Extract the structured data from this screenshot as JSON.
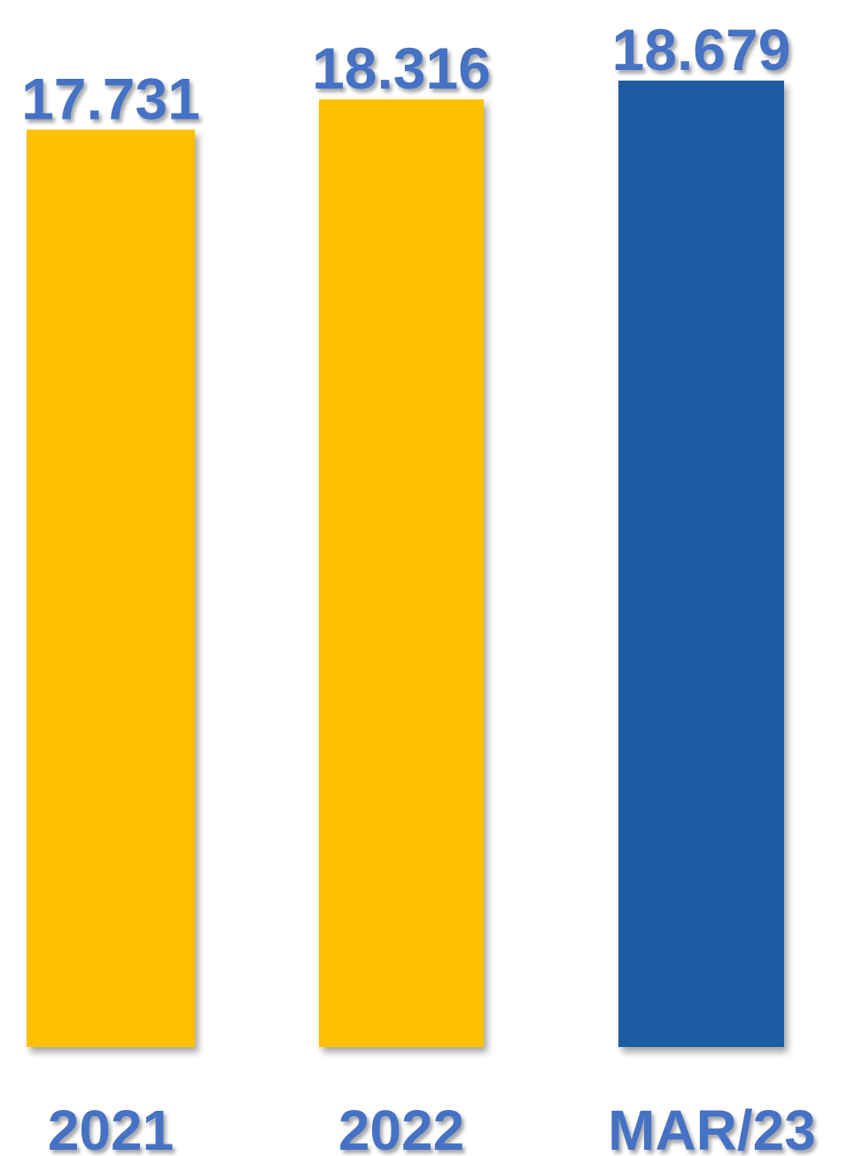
{
  "chart_data": {
    "type": "bar",
    "categories": [
      "2021",
      "2022",
      "MAR/23"
    ],
    "values": [
      17731,
      18316,
      18679
    ],
    "value_labels": [
      "17.731",
      "18.316",
      "18.679"
    ],
    "title": "",
    "xlabel": "",
    "ylabel": "",
    "grid": false,
    "legend": "none",
    "colors": {
      "bars": [
        "#FFC000",
        "#FFC000",
        "#1B5CA3"
      ],
      "label_text": "#4472C4"
    }
  }
}
